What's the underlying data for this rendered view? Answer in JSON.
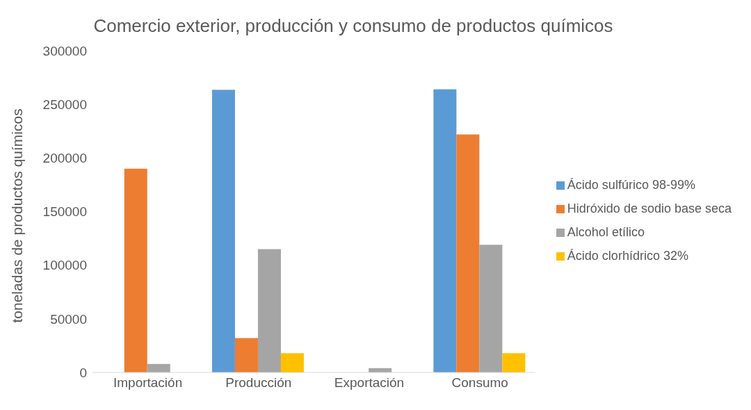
{
  "chart_data": {
    "type": "bar",
    "title": "Comercio exterior, producción y consumo de productos químicos",
    "ylabel": "toneladas de productos químicos",
    "categories": [
      "Importación",
      "Producción",
      "Exportación",
      "Consumo"
    ],
    "series": [
      {
        "name": "Ácido sulfúrico 98-99%",
        "color": "#5b9bd5",
        "values": [
          null,
          263500,
          null,
          264000
        ]
      },
      {
        "name": "Hidróxido de sodio base seca",
        "color": "#ed7d31",
        "values": [
          190000,
          32000,
          null,
          222000
        ]
      },
      {
        "name": "Alcohol etílico",
        "color": "#a5a5a5",
        "values": [
          8000,
          115000,
          4000,
          119000
        ]
      },
      {
        "name": "Ácido clorhídrico 32%",
        "color": "#ffc000",
        "values": [
          null,
          18000,
          null,
          18000
        ]
      }
    ],
    "ylim": [
      0,
      300000
    ],
    "yticks": [
      0,
      50000,
      100000,
      150000,
      200000,
      250000,
      300000
    ],
    "grid": false,
    "legend": "right"
  }
}
